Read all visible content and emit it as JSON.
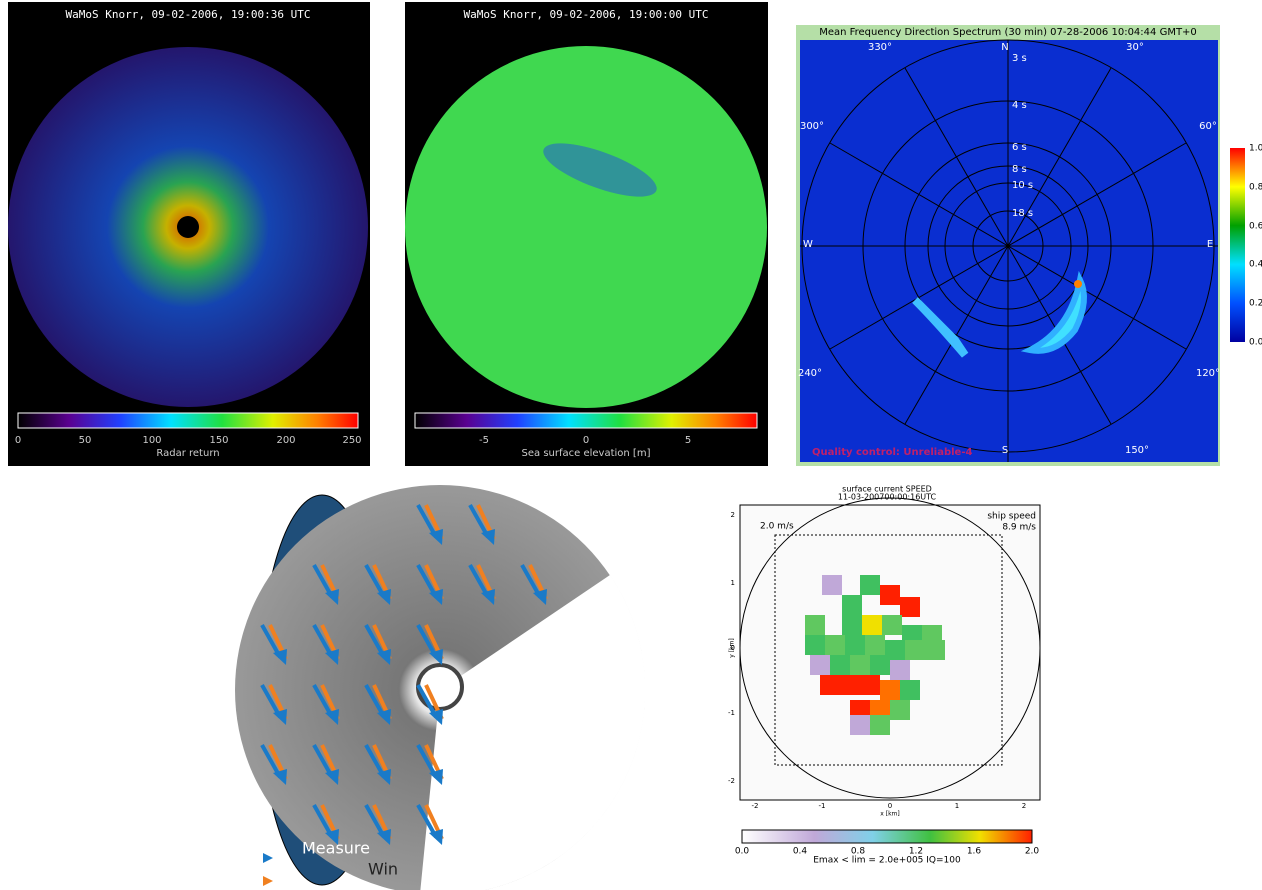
{
  "panels": [
    {
      "title": "WaMoS Knorr, 09-02-2006, 19:00:36 UTC",
      "colorbar_ticks": [
        "0",
        "50",
        "100",
        "150",
        "200",
        "250"
      ],
      "colorbar_label": "Radar return"
    },
    {
      "title": "WaMoS Knorr, 09-02-2006, 19:00:00 UTC",
      "colorbar_ticks": [
        "-5",
        "0",
        "5"
      ],
      "colorbar_label": "Sea surface elevation [m]"
    },
    {
      "title": "Mean Frequency Direction Spectrum (30 min) 07-28-2006 10:04:44 GMT+0",
      "directions": [
        "330°",
        "N",
        "30°",
        "300°",
        "60°",
        "W",
        "E",
        "240°",
        "120°",
        "S",
        "150°"
      ],
      "periods": [
        "3 s",
        "4 s",
        "6 s",
        "8 s",
        "10 s",
        "18 s"
      ],
      "colorbar_ticks": [
        "1.0",
        "0.8",
        "0.6",
        "0.4",
        "0.2",
        "0.0"
      ],
      "quality": "Quality control: Unreliable-4"
    },
    {
      "legend": [
        "Measure",
        "Win"
      ]
    },
    {
      "title": "surface current SPEED",
      "subtitle": "11-03-200700:00:16UTC",
      "scale_label": "2.0 m/s",
      "ship_label": "ship speed",
      "ship_speed": "8.9 m/s",
      "xticks": [
        "-2",
        "-1",
        "0",
        "1",
        "2"
      ],
      "yticks": [
        "2",
        "1",
        "0",
        "-1",
        "-2"
      ],
      "xlabel": "x [km]",
      "ylabel": "y [km]",
      "colorbar_ticks": [
        "0.0",
        "0.4",
        "0.8",
        "1.2",
        "1.6",
        "2.0"
      ],
      "footer": "Emax < lim = 2.0e+005 IQ=100"
    }
  ]
}
